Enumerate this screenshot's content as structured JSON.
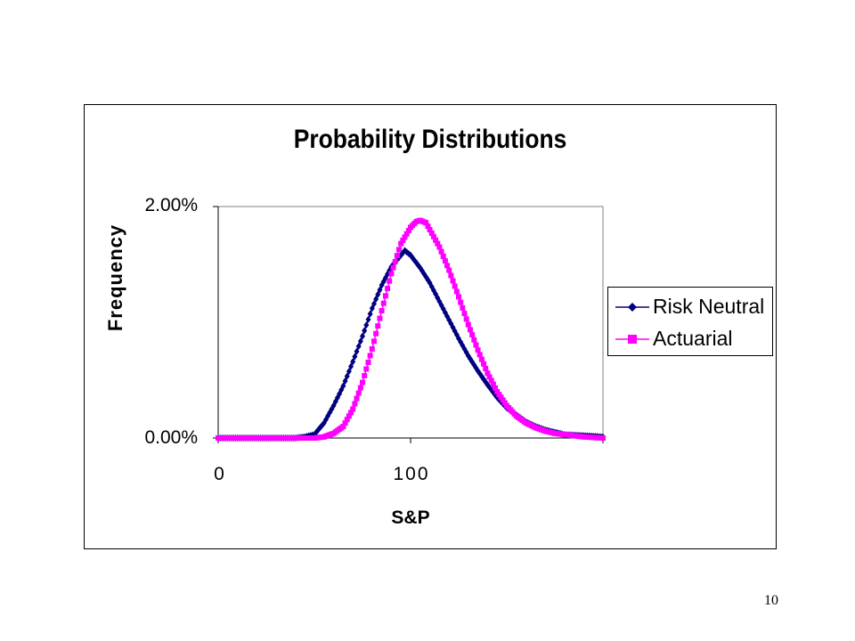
{
  "slide": {
    "page_number": "10"
  },
  "chart_data": {
    "type": "line",
    "title": "Probability Distributions",
    "xlabel": "S&P",
    "ylabel": "Frequency",
    "xlim": [
      0,
      200
    ],
    "ylim": [
      0,
      0.02
    ],
    "x_ticks": [
      "0",
      "100"
    ],
    "y_ticks": [
      "0.00%",
      "2.00%"
    ],
    "grid": false,
    "legend_position": "right",
    "series": [
      {
        "name": "Risk Neutral",
        "color": "#000080",
        "marker": "diamond",
        "x": [
          0,
          40,
          45,
          50,
          55,
          60,
          65,
          70,
          75,
          80,
          85,
          90,
          95,
          97,
          100,
          105,
          110,
          115,
          120,
          125,
          130,
          135,
          140,
          145,
          150,
          155,
          160,
          165,
          170,
          175,
          180,
          190,
          200
        ],
        "values": [
          0,
          0,
          0.0001,
          0.0003,
          0.0013,
          0.0028,
          0.0045,
          0.0066,
          0.0088,
          0.0112,
          0.0132,
          0.0148,
          0.0158,
          0.0162,
          0.0158,
          0.0147,
          0.0134,
          0.0118,
          0.0102,
          0.0086,
          0.0071,
          0.0058,
          0.0046,
          0.0035,
          0.0026,
          0.002,
          0.0014,
          0.001,
          0.0007,
          0.0005,
          0.0003,
          0.0002,
          0.0001
        ]
      },
      {
        "name": "Actuarial",
        "color": "#FF00FF",
        "marker": "square",
        "x": [
          0,
          50,
          55,
          60,
          65,
          70,
          75,
          80,
          85,
          90,
          95,
          100,
          103,
          105,
          108,
          110,
          115,
          120,
          125,
          130,
          135,
          140,
          145,
          150,
          155,
          160,
          165,
          170,
          175,
          180,
          190,
          200
        ],
        "values": [
          0,
          0,
          0.0001,
          0.0004,
          0.001,
          0.0025,
          0.0048,
          0.0077,
          0.011,
          0.0142,
          0.0168,
          0.0182,
          0.0187,
          0.0188,
          0.0186,
          0.018,
          0.0165,
          0.0145,
          0.0122,
          0.0098,
          0.0076,
          0.0056,
          0.004,
          0.0028,
          0.0019,
          0.0013,
          0.0009,
          0.0006,
          0.0004,
          0.0003,
          0.0001,
          0
        ]
      }
    ]
  }
}
